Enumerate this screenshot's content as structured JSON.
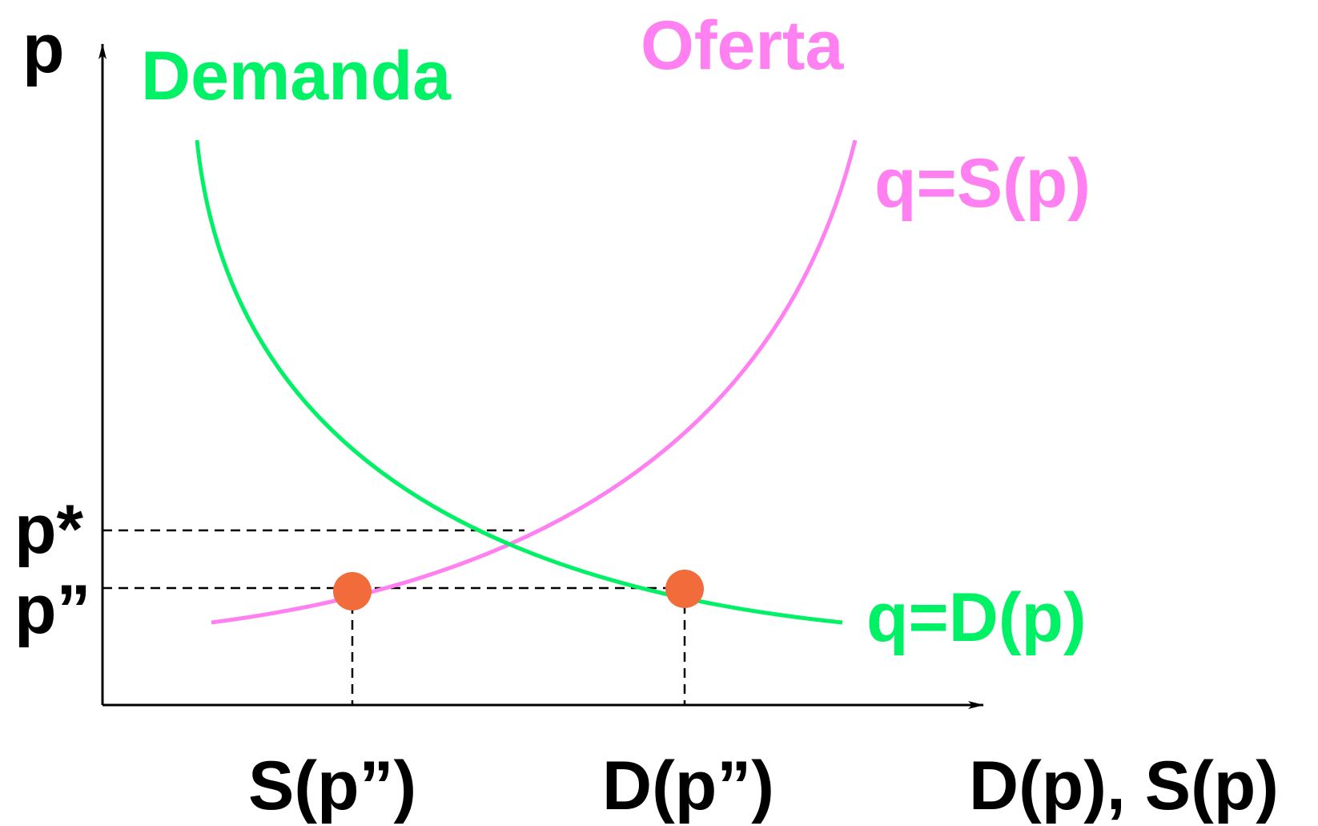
{
  "diagram": {
    "y_axis_label": "p",
    "x_axis_label": "D(p), S(p)",
    "demand_title": "Demanda",
    "supply_title": "Oferta",
    "supply_equation": "q=S(p)",
    "demand_equation": "q=D(p)",
    "equilibrium_price_label": "p*",
    "low_price_label": "p”",
    "supply_at_low_price_label": "S(p”)",
    "demand_at_low_price_label": "D(p”)",
    "colors": {
      "demand": "#00f066",
      "supply": "#ff80f0",
      "points": "#f26b3a",
      "axes": "#000000",
      "text": "#000000"
    }
  }
}
